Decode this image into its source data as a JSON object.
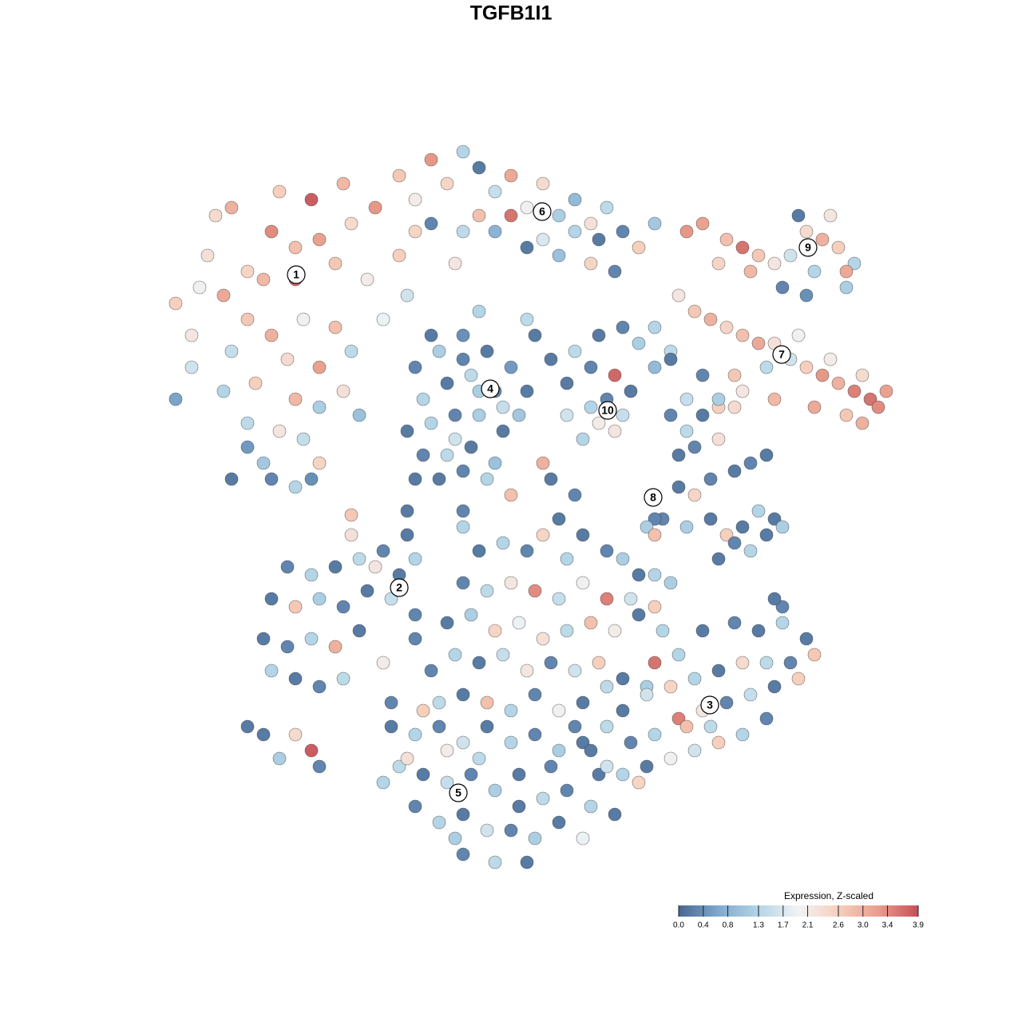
{
  "chart_data": {
    "type": "scatter",
    "title": "TGFB1I1",
    "xlim": [
      -45,
      50
    ],
    "ylim": [
      -46,
      49
    ],
    "x": [
      -35,
      -30,
      -27,
      -33,
      -38,
      -42,
      -40,
      -36,
      -31,
      -27,
      -24,
      -20,
      -17,
      -22,
      -18,
      -14,
      -12,
      -26,
      -22,
      -30,
      -35,
      -33,
      -28,
      -24,
      -20,
      -16,
      -13,
      -36,
      -32,
      -27,
      -24,
      -21,
      -19,
      -40,
      -42,
      -33,
      -29,
      -26,
      -24,
      -31,
      -33,
      -30,
      -27,
      -35,
      -25,
      -39,
      -37,
      -29,
      -25,
      -21,
      -14,
      -10,
      -12,
      -8,
      -6,
      -4,
      -2,
      0,
      2,
      4,
      6,
      8,
      10,
      12,
      14,
      16,
      18,
      -10,
      -6,
      -2,
      2,
      6,
      10,
      13,
      -7,
      -4,
      0,
      4,
      8,
      11,
      27,
      29,
      31,
      33,
      35,
      37,
      39,
      41,
      43,
      26,
      30,
      34,
      38,
      42,
      40,
      36,
      42,
      37,
      24,
      22,
      21,
      23,
      25,
      27,
      29,
      31,
      33,
      35,
      37,
      39,
      41,
      43,
      45,
      47,
      44,
      40,
      36,
      32,
      28,
      24,
      22,
      26,
      29,
      33,
      38,
      42,
      46,
      44,
      20,
      18,
      -12,
      -9,
      -6,
      -3,
      0,
      2,
      -11,
      -8,
      -5,
      -2,
      1,
      -13,
      -10,
      -7,
      -4,
      -1,
      -11,
      -8,
      -5,
      -2,
      -9,
      -6,
      -3,
      -7,
      -4,
      -6,
      -1,
      -12,
      -10,
      -4,
      5,
      8,
      11,
      14,
      16,
      7,
      10,
      13,
      15,
      10,
      12,
      11,
      13,
      14,
      9,
      7,
      3,
      18,
      20,
      2,
      20,
      22,
      24,
      26,
      28,
      21,
      23,
      26,
      21,
      23,
      25,
      28,
      30,
      32,
      19,
      22,
      25,
      27,
      29,
      31,
      33,
      34,
      26,
      28,
      30,
      32,
      18,
      17,
      18,
      6,
      -4,
      -1,
      2,
      4,
      7,
      9,
      12,
      14,
      16,
      18,
      -6,
      -3,
      0,
      3,
      6,
      9,
      12,
      15,
      18,
      20,
      -8,
      -5,
      -2,
      1,
      4,
      7,
      10,
      13,
      16,
      19,
      -7,
      -4,
      -1,
      2,
      5,
      8,
      11,
      14,
      17,
      -10,
      -9,
      -6,
      -3,
      0,
      3,
      6,
      9,
      12,
      0,
      -6,
      -28,
      -25,
      -22,
      -19,
      -16,
      -14,
      -12,
      -30,
      -27,
      -24,
      -21,
      -18,
      -15,
      -12,
      -31,
      -28,
      -25,
      -22,
      -19,
      -30,
      -27,
      -24,
      -21,
      -16,
      -12,
      -20,
      -17,
      -13,
      -33,
      -27,
      -25,
      -29,
      -31,
      -24,
      -20,
      -13,
      -6,
      5,
      4,
      8,
      -15,
      -12,
      -9,
      -6,
      -3,
      0,
      3,
      6,
      9,
      -14,
      -11,
      -8,
      -5,
      -2,
      1,
      4,
      7,
      10,
      13,
      -12,
      -9,
      -6,
      -3,
      0,
      3,
      6,
      9,
      -6,
      -2,
      2,
      -15,
      -13,
      -16,
      -11,
      -8,
      11,
      5,
      -4,
      1,
      -7,
      28,
      31,
      34,
      37,
      38,
      35,
      32,
      29,
      26,
      23,
      20,
      17,
      14,
      12,
      15,
      18,
      21,
      24,
      27,
      30,
      33,
      36,
      32,
      29,
      26,
      23,
      20,
      17,
      14,
      16,
      10,
      8,
      12,
      22,
      25,
      34,
      24,
      21,
      18,
      33
    ],
    "y": [
      38,
      35,
      33,
      30,
      32,
      26,
      22,
      27,
      29,
      29,
      34,
      36,
      38,
      31,
      29,
      32,
      35,
      24,
      23,
      22,
      20,
      24,
      19,
      18,
      20,
      24,
      27,
      15,
      16,
      14,
      13,
      15,
      12,
      18,
      14,
      11,
      10,
      9,
      6,
      6,
      8,
      4,
      3,
      4,
      4,
      28,
      37,
      40,
      39,
      41,
      42,
      44,
      39,
      41,
      45,
      43,
      40,
      42,
      38,
      41,
      37,
      39,
      36,
      38,
      35,
      33,
      36,
      36,
      35,
      35,
      33,
      32,
      31,
      30,
      31,
      37,
      37,
      34,
      35,
      34,
      34,
      33,
      32,
      31,
      32,
      35,
      34,
      33,
      31,
      31,
      30,
      28,
      30,
      30,
      37,
      37,
      28,
      27,
      36,
      35,
      27,
      25,
      24,
      23,
      22,
      21,
      21,
      19,
      18,
      17,
      16,
      15,
      14,
      15,
      17,
      19,
      22,
      18,
      17,
      17,
      14,
      13,
      15,
      14,
      13,
      12,
      13,
      11,
      20,
      18,
      18,
      20,
      22,
      20,
      18,
      15,
      14,
      16,
      17,
      15,
      12,
      10,
      11,
      12,
      12,
      10,
      7,
      7,
      8,
      6,
      4,
      5,
      4,
      9,
      15,
      19,
      13,
      4,
      22,
      25,
      19,
      20,
      22,
      23,
      21,
      16,
      18,
      17,
      15,
      13,
      14,
      11,
      10,
      12,
      9,
      12,
      22,
      23,
      19,
      24,
      12,
      10,
      12,
      14,
      13,
      7,
      8,
      9,
      3,
      2,
      4,
      5,
      6,
      7,
      -1,
      -2,
      -1,
      -3,
      -2,
      0,
      -1,
      -2,
      -6,
      -4,
      -5,
      -3,
      -1,
      -2,
      -3,
      -1,
      -5,
      -4,
      -5,
      -3,
      -6,
      -3,
      -5,
      -6,
      -8,
      -8,
      -9,
      -10,
      -9,
      -10,
      -11,
      -9,
      -11,
      -11,
      -12,
      -9,
      -14,
      -13,
      -15,
      -14,
      -16,
      -15,
      -14,
      -15,
      -13,
      -15,
      -18,
      -19,
      -18,
      -20,
      -19,
      -20,
      -19,
      -21,
      -22,
      -20,
      -24,
      -23,
      -24,
      -25,
      -23,
      -25,
      -24,
      -22,
      2,
      0,
      -7,
      -8,
      -7,
      -6,
      -5,
      -8,
      -6,
      -11,
      -12,
      -11,
      -12,
      -10,
      -11,
      -13,
      -16,
      -17,
      -16,
      -17,
      -15,
      -20,
      -21,
      -22,
      -21,
      -19,
      -16,
      -3,
      -7,
      -3,
      -27,
      -28,
      -30,
      -31,
      -28,
      -32,
      -0.5,
      0,
      -2,
      4,
      6,
      2,
      -27,
      -28,
      -27,
      -29,
      -27,
      -29,
      -28,
      -30,
      -29,
      -32,
      -33,
      -34,
      -33,
      -35,
      -33,
      -36,
      -35,
      -37,
      -38,
      -37,
      -39,
      -38,
      -40,
      -40,
      -41,
      -39,
      -41,
      -43,
      -44,
      -44,
      -24,
      -31,
      -34,
      -25,
      -30,
      -33,
      -32,
      -31,
      -37,
      -41,
      -14,
      -15,
      -14,
      -16,
      -18,
      -19,
      -19,
      -19,
      -20,
      -21,
      -22,
      -23,
      -25,
      -27,
      -29,
      -28,
      -26,
      -25,
      -24,
      -23,
      -22,
      -21,
      -26,
      -28,
      -29,
      -30,
      -31,
      -32,
      -33,
      -34,
      -30,
      -27,
      -32,
      -27,
      -27,
      -12,
      -15,
      -18,
      -19,
      -11
    ],
    "values": [
      3.0,
      3.4,
      2.8,
      2.5,
      2.3,
      2.6,
      2.2,
      3.1,
      2.9,
      3.7,
      3.2,
      2.4,
      3.3,
      2.7,
      2.1,
      2.6,
      2.5,
      2.0,
      2.8,
      3.0,
      1.5,
      2.7,
      2.4,
      3.2,
      1.4,
      1.9,
      1.6,
      1.3,
      2.6,
      2.9,
      1.2,
      2.3,
      1.0,
      1.6,
      0.6,
      1.4,
      2.2,
      1.5,
      2.5,
      1.1,
      0.5,
      0.3,
      1.3,
      0.2,
      0.4,
      2.0,
      2.4,
      2.6,
      3.8,
      2.9,
      2.7,
      3.3,
      2.1,
      2.5,
      1.3,
      0.2,
      1.5,
      3.1,
      2.0,
      2.4,
      1.2,
      0.9,
      2.3,
      1.4,
      0.3,
      2.6,
      1.1,
      0.3,
      1.4,
      0.8,
      0.2,
      1.0,
      2.5,
      0.3,
      2.2,
      2.8,
      3.6,
      1.7,
      1.3,
      0.2,
      2.8,
      3.6,
      2.7,
      2.2,
      1.6,
      2.4,
      3.0,
      2.6,
      1.3,
      2.5,
      2.9,
      0.3,
      1.3,
      3.1,
      2.2,
      0.2,
      1.2,
      0.4,
      3.2,
      3.3,
      2.2,
      2.7,
      3.0,
      2.5,
      2.8,
      3.1,
      2.3,
      1.6,
      2.6,
      3.3,
      3.0,
      3.5,
      3.6,
      3.2,
      2.4,
      2.1,
      2.0,
      1.4,
      2.7,
      0.3,
      1.5,
      2.6,
      2.2,
      2.9,
      3.1,
      2.7,
      3.4,
      3.0,
      1.4,
      0.9,
      0.3,
      1.2,
      0.4,
      0.2,
      0.5,
      0.2,
      1.3,
      0.2,
      1.4,
      0.3,
      1.1,
      0.2,
      1.3,
      0.3,
      1.2,
      0.2,
      0.3,
      1.4,
      0.2,
      1.0,
      0.2,
      0.3,
      1.3,
      1.6,
      1.2,
      0.3,
      1.5,
      0.2,
      0.2,
      1.3,
      0.2,
      1.4,
      0.2,
      0.3,
      1.2,
      0.2,
      0.3,
      3.7,
      0.2,
      1.3,
      0.3,
      2.1,
      2.2,
      1.5,
      1.3,
      1.6,
      0.2,
      1.3,
      0.2,
      1.4,
      0.3,
      1.4,
      0.2,
      1.2,
      2.4,
      0.2,
      0.3,
      2.3,
      0.2,
      2.5,
      0.3,
      0.2,
      0.3,
      0.2,
      0.3,
      1.2,
      0.2,
      2.6,
      0.2,
      1.3,
      0.2,
      1.2,
      0.2,
      0.3,
      1.3,
      0.2,
      0.3,
      1.2,
      2.8,
      0.2,
      0.2,
      1.3,
      0.3,
      2.5,
      1.3,
      0.2,
      0.3,
      1.2,
      0.2,
      1.3,
      0.3,
      1.4,
      2.2,
      3.4,
      1.5,
      2.0,
      3.5,
      1.6,
      2.6,
      1.2,
      0.2,
      1.2,
      2.5,
      1.9,
      2.3,
      1.4,
      2.8,
      2.1,
      0.2,
      1.3,
      1.3,
      0.2,
      1.5,
      2.2,
      0.3,
      1.6,
      2.6,
      0.2,
      1.2,
      0.3,
      1.4,
      0.2,
      2.8,
      1.3,
      0.3,
      2.0,
      0.2,
      1.4,
      2.8,
      0.3,
      0.3,
      1.3,
      0.2,
      1.4,
      0.3,
      0.2,
      1.3,
      0.2,
      2.7,
      1.2,
      0.3,
      0.2,
      1.5,
      0.3,
      0.2,
      0.3,
      1.3,
      3.0,
      0.2,
      1.3,
      0.2,
      0.3,
      1.4,
      2.1,
      0.3,
      2.3,
      2.2,
      0.2,
      0.2,
      2.4,
      3.8,
      1.2,
      0.2,
      0.3,
      2.7,
      0.2,
      1.3,
      0.2,
      3.0,
      0.3,
      0.2,
      1.3,
      0.3,
      1.6,
      0.2,
      1.3,
      0.3,
      1.2,
      0.2,
      1.4,
      0.2,
      1.5,
      0.3,
      1.2,
      0.2,
      1.4,
      0.3,
      1.3,
      0.2,
      0.3,
      1.3,
      0.2,
      1.6,
      0.3,
      1.2,
      0.2,
      1.9,
      0.3,
      1.4,
      0.2,
      0.3,
      2.3,
      1.3,
      2.6,
      2.1,
      0.2,
      0.3,
      1.4,
      0.2,
      1.2,
      0.3,
      0.2,
      1.3,
      0.2,
      2.7,
      0.3,
      1.4,
      2.4,
      0.2,
      1.3,
      2.5,
      1.6,
      0.2,
      1.4,
      0.3,
      1.3,
      3.5,
      2.2,
      0.3,
      1.5,
      0.2,
      2.6,
      0.3,
      1.3,
      2.6,
      1.6,
      2.0,
      0.2,
      1.3,
      2.5,
      0.2,
      0.3,
      1.6,
      2.8,
      1.4,
      0.3,
      0.2,
      1.3,
      3.6,
      0.2
    ],
    "clusters": [
      {
        "label": "1",
        "x": -26.9,
        "y": 29.6
      },
      {
        "label": "6",
        "x": 3.9,
        "y": 37.5
      },
      {
        "label": "9",
        "x": 37.2,
        "y": 33
      },
      {
        "label": "7",
        "x": 33.9,
        "y": 19.6
      },
      {
        "label": "4",
        "x": -2.6,
        "y": 15.3
      },
      {
        "label": "10",
        "x": 12.1,
        "y": 12.6
      },
      {
        "label": "8",
        "x": 17.8,
        "y": 1.7
      },
      {
        "label": "2",
        "x": -14,
        "y": -9.6
      },
      {
        "label": "3",
        "x": 24.9,
        "y": -24.3
      },
      {
        "label": "5",
        "x": -6.6,
        "y": -35.3
      }
    ],
    "colorbar": {
      "title": "Expression, Z-scaled",
      "lim": [
        0,
        3.9
      ],
      "ticks": [
        {
          "value": 0,
          "label": "0.0"
        },
        0.4,
        0.8,
        1.3,
        1.7,
        2.1,
        2.6,
        {
          "value": 3,
          "label": "3.0"
        },
        3.4,
        3.9
      ],
      "colors": [
        "#476791",
        "#7fa9cf",
        "#b3d5e7",
        "#f1f3f5",
        "#f7cfbd",
        "#e99e8c",
        "#c65058"
      ]
    }
  }
}
